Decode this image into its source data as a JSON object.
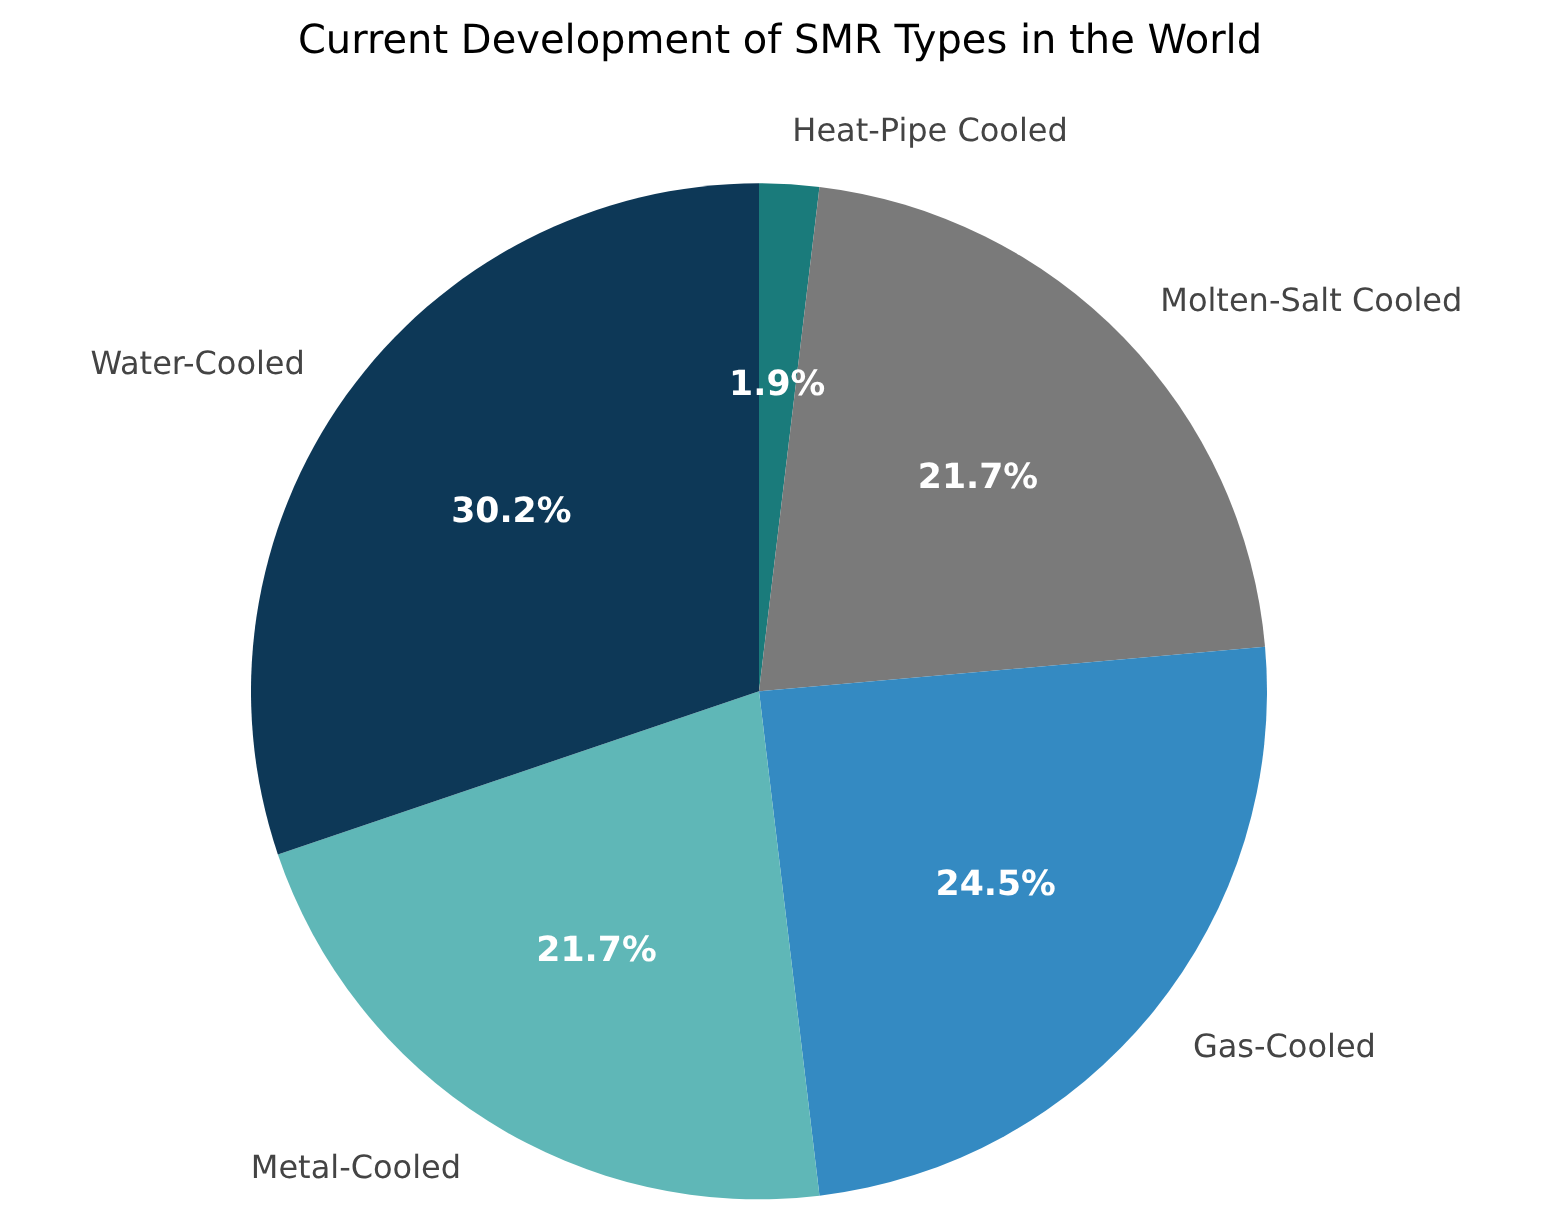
{
  "chart_data": {
    "type": "pie",
    "title": "Current Development of SMR Types in the World",
    "categories": [
      "Heat-Pipe Cooled",
      "Molten-Salt Cooled",
      "Gas-Cooled",
      "Metal-Cooled",
      "Water-Cooled"
    ],
    "values": [
      1.9,
      21.7,
      24.5,
      21.7,
      30.2
    ],
    "colors": [
      "#1a7b7b",
      "#7a7a7a",
      "#348ac2",
      "#5fb7b7",
      "#0d3857"
    ],
    "value_labels": [
      "1.9%",
      "21.7%",
      "24.5%",
      "21.7%",
      "30.2%"
    ]
  }
}
